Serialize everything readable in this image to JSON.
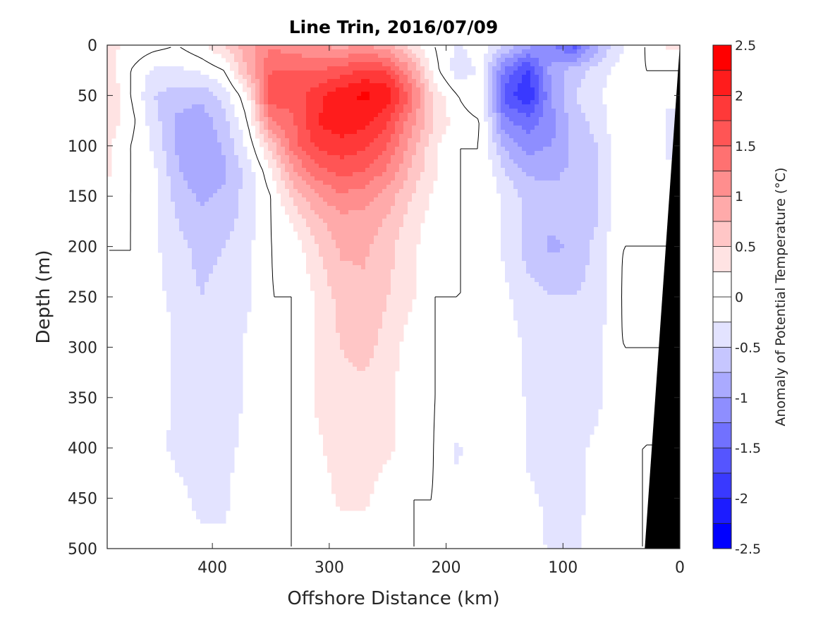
{
  "chart_data": {
    "type": "heatmap",
    "subtype": "filled-contour",
    "title": "Line Trin, 2016/07/09",
    "xlabel": "Offshore Distance (km)",
    "ylabel": "Depth (m)",
    "colorbar_label": "Anomaly of Potential Temperature (°C)",
    "xlim": [
      490,
      0
    ],
    "ylim": [
      0,
      500
    ],
    "x_reversed": true,
    "y_reversed": true,
    "x_ticks": [
      400,
      300,
      200,
      100,
      0
    ],
    "x_tick_labels": [
      "400",
      "300",
      "200",
      "100",
      "0"
    ],
    "y_ticks": [
      0,
      50,
      100,
      150,
      200,
      250,
      300,
      350,
      400,
      450,
      500
    ],
    "y_tick_labels": [
      "0",
      "50",
      "100",
      "150",
      "200",
      "250",
      "300",
      "350",
      "400",
      "450",
      "500"
    ],
    "colorbar": {
      "min": -2.5,
      "max": 2.5,
      "step": 0.25,
      "ticks": [
        2.5,
        2,
        1.5,
        1,
        0.5,
        0,
        -0.5,
        -1,
        -1.5,
        -2,
        -2.5
      ],
      "tick_labels": [
        "2.5",
        "2",
        "1.5",
        "1",
        "0.5",
        "0",
        "-0.5",
        "-1",
        "-1.5",
        "-2",
        "-2.5"
      ],
      "neg_color": "#0000ff",
      "pos_color": "#ff0000",
      "zero_color": "#ffffff"
    },
    "zero_contour_color": "#000000",
    "bathymetry_color": "#000000",
    "bathymetry": {
      "description": "seafloor wedge at shelf edge",
      "points_km_depth": [
        [
          0,
          0
        ],
        [
          0,
          500
        ],
        [
          30,
          500
        ]
      ]
    },
    "grid_x_km": [
      490,
      470,
      450,
      430,
      410,
      390,
      370,
      350,
      330,
      310,
      290,
      270,
      250,
      230,
      210,
      190,
      170,
      150,
      130,
      110,
      90,
      70,
      50,
      30,
      10
    ],
    "grid_depth_m": [
      0,
      25,
      50,
      75,
      100,
      125,
      150,
      175,
      200,
      250,
      300,
      350,
      400,
      450,
      500
    ],
    "values": [
      [
        0.3,
        0.2,
        0.1,
        0.0,
        0.2,
        0.5,
        0.9,
        1.2,
        1.1,
        1.0,
        0.9,
        1.0,
        0.8,
        0.4,
        0.0,
        -0.3,
        -0.1,
        -0.5,
        -0.9,
        -1.2,
        -1.6,
        -0.8,
        -0.3,
        0.0,
        0.3
      ],
      [
        0.4,
        0.0,
        -0.3,
        -0.3,
        -0.2,
        0.0,
        0.8,
        1.5,
        1.5,
        1.5,
        1.6,
        1.8,
        1.7,
        1.0,
        0.1,
        -0.4,
        -0.2,
        -1.3,
        -1.8,
        -0.9,
        -0.6,
        -0.4,
        -0.1,
        0.0,
        0.0
      ],
      [
        0.5,
        0.0,
        -0.5,
        -0.6,
        -0.7,
        -0.4,
        0.2,
        1.7,
        1.6,
        1.9,
        2.2,
        2.3,
        2.2,
        1.4,
        0.4,
        0.0,
        -0.2,
        -1.6,
        -2.0,
        -1.0,
        -0.5,
        -0.3,
        0.0,
        0.0,
        -0.2
      ],
      [
        0.4,
        0.1,
        -0.4,
        -0.8,
        -0.9,
        -0.6,
        0.0,
        1.2,
        1.5,
        2.0,
        2.2,
        2.1,
        1.8,
        1.1,
        0.5,
        0.1,
        0.0,
        -1.2,
        -1.4,
        -1.1,
        -0.6,
        -0.4,
        0.0,
        0.0,
        -0.3
      ],
      [
        0.3,
        0.0,
        -0.3,
        -0.8,
        -1.0,
        -0.7,
        -0.2,
        0.6,
        1.4,
        1.8,
        1.9,
        1.8,
        1.5,
        0.9,
        0.3,
        0.0,
        0.0,
        -0.8,
        -1.1,
        -1.0,
        -0.7,
        -0.5,
        0.0,
        0.0,
        -0.3
      ],
      [
        0.3,
        0.0,
        -0.2,
        -0.7,
        -1.0,
        -0.8,
        -0.4,
        0.2,
        1.0,
        1.4,
        1.6,
        1.5,
        1.2,
        0.7,
        0.3,
        0.0,
        0.0,
        -0.5,
        -0.8,
        -0.8,
        -0.7,
        -0.5,
        0.0,
        0.0,
        -0.2
      ],
      [
        0.2,
        0.0,
        -0.2,
        -0.6,
        -0.8,
        -0.7,
        -0.4,
        0.0,
        0.6,
        1.0,
        1.2,
        1.1,
        0.9,
        0.5,
        0.2,
        0.0,
        0.0,
        -0.3,
        -0.6,
        -0.7,
        -0.7,
        -0.5,
        0.0,
        0.0,
        0.0
      ],
      [
        0.1,
        0.0,
        -0.2,
        -0.5,
        -0.7,
        -0.6,
        -0.4,
        0.0,
        0.3,
        0.7,
        0.9,
        0.9,
        0.7,
        0.4,
        0.1,
        0.0,
        0.0,
        -0.3,
        -0.6,
        -0.7,
        -0.7,
        -0.5,
        0.0,
        0.0,
        0.0
      ],
      [
        0.0,
        0.0,
        -0.2,
        -0.4,
        -0.6,
        -0.5,
        -0.3,
        0.0,
        0.1,
        0.5,
        0.8,
        0.8,
        0.6,
        0.3,
        0.1,
        0.0,
        0.0,
        -0.3,
        -0.6,
        -0.8,
        -0.7,
        -0.4,
        0.0,
        0.0,
        0.0
      ],
      [
        0.0,
        0.0,
        -0.2,
        -0.3,
        -0.5,
        -0.4,
        -0.3,
        0.0,
        0.0,
        0.3,
        0.6,
        0.7,
        0.5,
        0.3,
        0.0,
        0.0,
        0.0,
        -0.2,
        -0.4,
        -0.5,
        -0.5,
        -0.4,
        0.0,
        0.1,
        0.0
      ],
      [
        0.0,
        0.0,
        -0.1,
        -0.3,
        -0.4,
        -0.4,
        -0.2,
        0.0,
        0.0,
        0.3,
        0.5,
        0.6,
        0.4,
        0.1,
        0.0,
        0.0,
        0.0,
        -0.1,
        -0.3,
        -0.4,
        -0.4,
        -0.3,
        0.0,
        0.0,
        0.0
      ],
      [
        0.0,
        0.0,
        -0.1,
        -0.3,
        -0.4,
        -0.4,
        -0.2,
        0.0,
        0.0,
        0.3,
        0.4,
        0.4,
        0.3,
        0.1,
        0.0,
        0.0,
        0.0,
        0.0,
        -0.3,
        -0.4,
        -0.4,
        -0.3,
        0.0,
        0.0,
        0.0
      ],
      [
        0.0,
        0.0,
        -0.2,
        -0.3,
        -0.3,
        -0.3,
        -0.2,
        0.0,
        0.0,
        0.2,
        0.4,
        0.4,
        0.3,
        0.1,
        0.0,
        -0.3,
        0.0,
        0.0,
        -0.3,
        -0.4,
        -0.3,
        -0.2,
        0.0,
        0.0,
        0.0
      ],
      [
        0.0,
        0.0,
        0.0,
        -0.2,
        -0.3,
        -0.3,
        -0.1,
        0.0,
        0.0,
        0.1,
        0.3,
        0.3,
        0.1,
        0.0,
        0.0,
        -0.2,
        0.0,
        0.0,
        -0.2,
        -0.3,
        -0.3,
        -0.2,
        0.0,
        0.0,
        0.2
      ],
      [
        0.0,
        0.0,
        0.0,
        -0.1,
        -0.2,
        -0.2,
        -0.1,
        0.0,
        0.0,
        0.0,
        0.1,
        0.1,
        0.0,
        0.0,
        0.0,
        0.0,
        0.0,
        0.0,
        -0.1,
        -0.3,
        -0.3,
        -0.1,
        0.0,
        0.0,
        0.0
      ]
    ],
    "grid": false,
    "legend": "colorbar-right"
  }
}
